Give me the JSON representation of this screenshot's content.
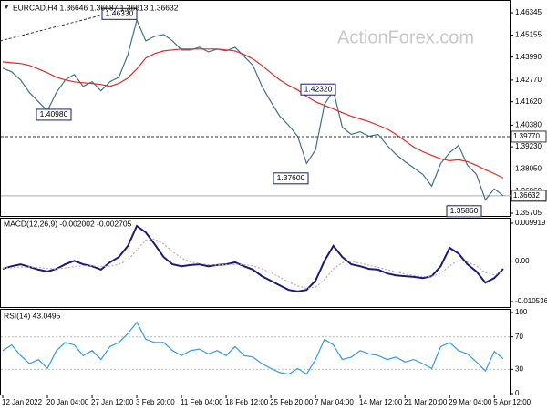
{
  "chart_data": [
    {
      "type": "line",
      "title": "EURCAD,H4 1.36646 1.36687 1.36613 1.36632",
      "watermark": "ActionForex.com",
      "series": [
        {
          "color": "#41708f",
          "values": [
            1.43405,
            1.43212,
            1.42778,
            1.42103,
            1.41621,
            1.41139,
            1.42103,
            1.42778,
            1.43067,
            1.42441,
            1.42682,
            1.422,
            1.42682,
            1.42923,
            1.44128,
            1.45959,
            1.44851,
            1.45092,
            1.45188,
            1.44851,
            1.44369,
            1.44369,
            1.44513,
            1.44272,
            1.44417,
            1.44321,
            1.44513,
            1.44031,
            1.43549,
            1.42441,
            1.41621,
            1.4085,
            1.40368,
            1.3979,
            1.38344,
            1.39067,
            1.41477,
            1.422,
            1.40272,
            1.39886,
            1.40031,
            1.3979,
            1.39886,
            1.39308,
            1.38826,
            1.3844,
            1.38103,
            1.37765,
            1.37139,
            1.38344,
            1.38922,
            1.39308,
            1.38247,
            1.37765,
            1.36416,
            1.36994,
            1.36632
          ]
        },
        {
          "color": "#e02a2a",
          "values": [
            1.4374,
            1.4369,
            1.4365,
            1.4355,
            1.4336,
            1.4316,
            1.4292,
            1.4278,
            1.4268,
            1.4263,
            1.4259,
            1.4254,
            1.4244,
            1.4259,
            1.4288,
            1.4336,
            1.4394,
            1.4418,
            1.4432,
            1.4437,
            1.4442,
            1.4442,
            1.4442,
            1.4442,
            1.4442,
            1.4437,
            1.4432,
            1.4413,
            1.4389,
            1.4355,
            1.4316,
            1.4278,
            1.4249,
            1.4225,
            1.4191,
            1.4162,
            1.4143,
            1.4124,
            1.4104,
            1.4085,
            1.4071,
            1.4056,
            1.4037,
            1.4018,
            1.3989,
            1.3955,
            1.3921,
            1.3897,
            1.3878,
            1.3859,
            1.3849,
            1.3854,
            1.3844,
            1.3825,
            1.3801,
            1.3781,
            1.3757
          ]
        }
      ],
      "ylim": [
        1.3556,
        1.4678
      ],
      "yticks": [
        1.46345,
        1.45155,
        {
          "value": 1.4399,
          "label": "1.43990"
        },
        {
          "value": 1.4277,
          "label": "1.42770"
        },
        {
          "value": 1.4162,
          "label": "1.41620"
        },
        {
          "value": 1.4038,
          "label": "1.40380"
        },
        {
          "value": 1.3923,
          "label": "1.39230"
        },
        {
          "value": 1.3805,
          "label": "1.38050"
        },
        {
          "value": 1.3686,
          "label": "1.36860"
        },
        1.35705
      ],
      "levels": [
        {
          "value": 1.3977,
          "label": "1.39770"
        }
      ],
      "price_line": 1.36632,
      "annotations": [
        {
          "value": 1.4633,
          "label": "1.46330"
        },
        {
          "value": 1.4098,
          "label": "1.40980"
        },
        {
          "value": 1.4232,
          "label": "1.42320"
        },
        {
          "value": 1.376,
          "label": "1.37600"
        },
        {
          "value": 1.3586,
          "label": "1.35860"
        }
      ]
    },
    {
      "type": "line",
      "title": "MACD(12,26,9) -0.002002 -0.002705",
      "series": [
        {
          "color": "#1a1a78",
          "width": 2,
          "values": [
            -0.002,
            -0.0013,
            -0.0008,
            -0.0015,
            -0.0022,
            -0.0027,
            -0.002,
            -0.0008,
            0.0001,
            -0.0008,
            -0.0013,
            -0.0022,
            -0.0003,
            0.0011,
            0.004,
            0.0092,
            0.0075,
            0.0044,
            0.0011,
            -0.0008,
            -0.0013,
            -0.001,
            -0.0008,
            -0.0013,
            -0.001,
            -0.0008,
            -0.0003,
            -0.0013,
            -0.0022,
            -0.0039,
            -0.0051,
            -0.0063,
            -0.0075,
            -0.0079,
            -0.0075,
            -0.0051,
            0.0001,
            0.004,
            0.0011,
            -0.0008,
            -0.0013,
            -0.002,
            -0.0022,
            -0.0032,
            -0.0037,
            -0.0039,
            -0.0041,
            -0.0044,
            -0.0039,
            -0.0013,
            0.0035,
            0.002,
            -0.0008,
            -0.0027,
            -0.0056,
            -0.0044,
            -0.002002
          ]
        },
        {
          "color": "#c9a9b0",
          "dashed": true,
          "values": [
            -0.0018,
            -0.0017,
            -0.0015,
            -0.0015,
            -0.0016,
            -0.0019,
            -0.002,
            -0.0018,
            -0.0014,
            -0.0012,
            -0.0012,
            -0.0014,
            -0.0013,
            -0.0008,
            0.0002,
            0.003,
            0.0055,
            0.0058,
            0.0045,
            0.0025,
            0.0008,
            -0.0002,
            -0.0006,
            -0.0009,
            -0.001,
            -0.0009,
            -0.0008,
            -0.0009,
            -0.0012,
            -0.002,
            -0.003,
            -0.0042,
            -0.0054,
            -0.0065,
            -0.0071,
            -0.0068,
            -0.0048,
            -0.002,
            -0.0004,
            -0.0001,
            -0.0005,
            -0.0011,
            -0.0016,
            -0.0022,
            -0.0028,
            -0.0033,
            -0.0037,
            -0.004,
            -0.004,
            -0.0032,
            -0.0012,
            0.0002,
            -0.0002,
            -0.0012,
            -0.003,
            -0.0036,
            -0.002705
          ]
        }
      ],
      "ylim": [
        -0.0122,
        0.0111
      ],
      "yticks": [
        0.009919,
        {
          "value": 0,
          "label": "0.00"
        },
        -0.010536
      ]
    },
    {
      "type": "line",
      "title": "RSI(14) 43.0495",
      "categories": [
        "12 Jan 2022",
        null,
        null,
        null,
        null,
        "20 Jan 04:00",
        null,
        null,
        null,
        null,
        "27 Jan 12:00",
        null,
        null,
        null,
        null,
        "3 Feb 20:00",
        null,
        null,
        null,
        null,
        "11 Feb 04:00",
        null,
        null,
        null,
        null,
        "18 Feb 12:00",
        null,
        null,
        null,
        null,
        "25 Feb 20:00",
        null,
        null,
        null,
        null,
        "7 Mar 04:00",
        null,
        null,
        null,
        null,
        "14 Mar 12:00",
        null,
        null,
        null,
        null,
        "21 Mar 20:00",
        null,
        null,
        null,
        null,
        "29 Mar 04:00",
        null,
        null,
        null,
        null,
        "5 Apr 12:00",
        null
      ],
      "series": [
        {
          "color": "#3399ee",
          "values": [
            53,
            60,
            47,
            37,
            42,
            31,
            53,
            63,
            60,
            47,
            53,
            42,
            58,
            63,
            74,
            88,
            67,
            63,
            63,
            53,
            47,
            53,
            55,
            49,
            53,
            47,
            58,
            47,
            45,
            37,
            31,
            26,
            24,
            31,
            24,
            42,
            67,
            60,
            42,
            45,
            53,
            49,
            47,
            42,
            45,
            39,
            42,
            37,
            31,
            58,
            63,
            53,
            49,
            39,
            28,
            52,
            43.0495
          ]
        }
      ],
      "ylim": [
        0,
        100
      ],
      "yticks": [
        100,
        70,
        30,
        0
      ],
      "levels": [
        70,
        30
      ]
    }
  ]
}
